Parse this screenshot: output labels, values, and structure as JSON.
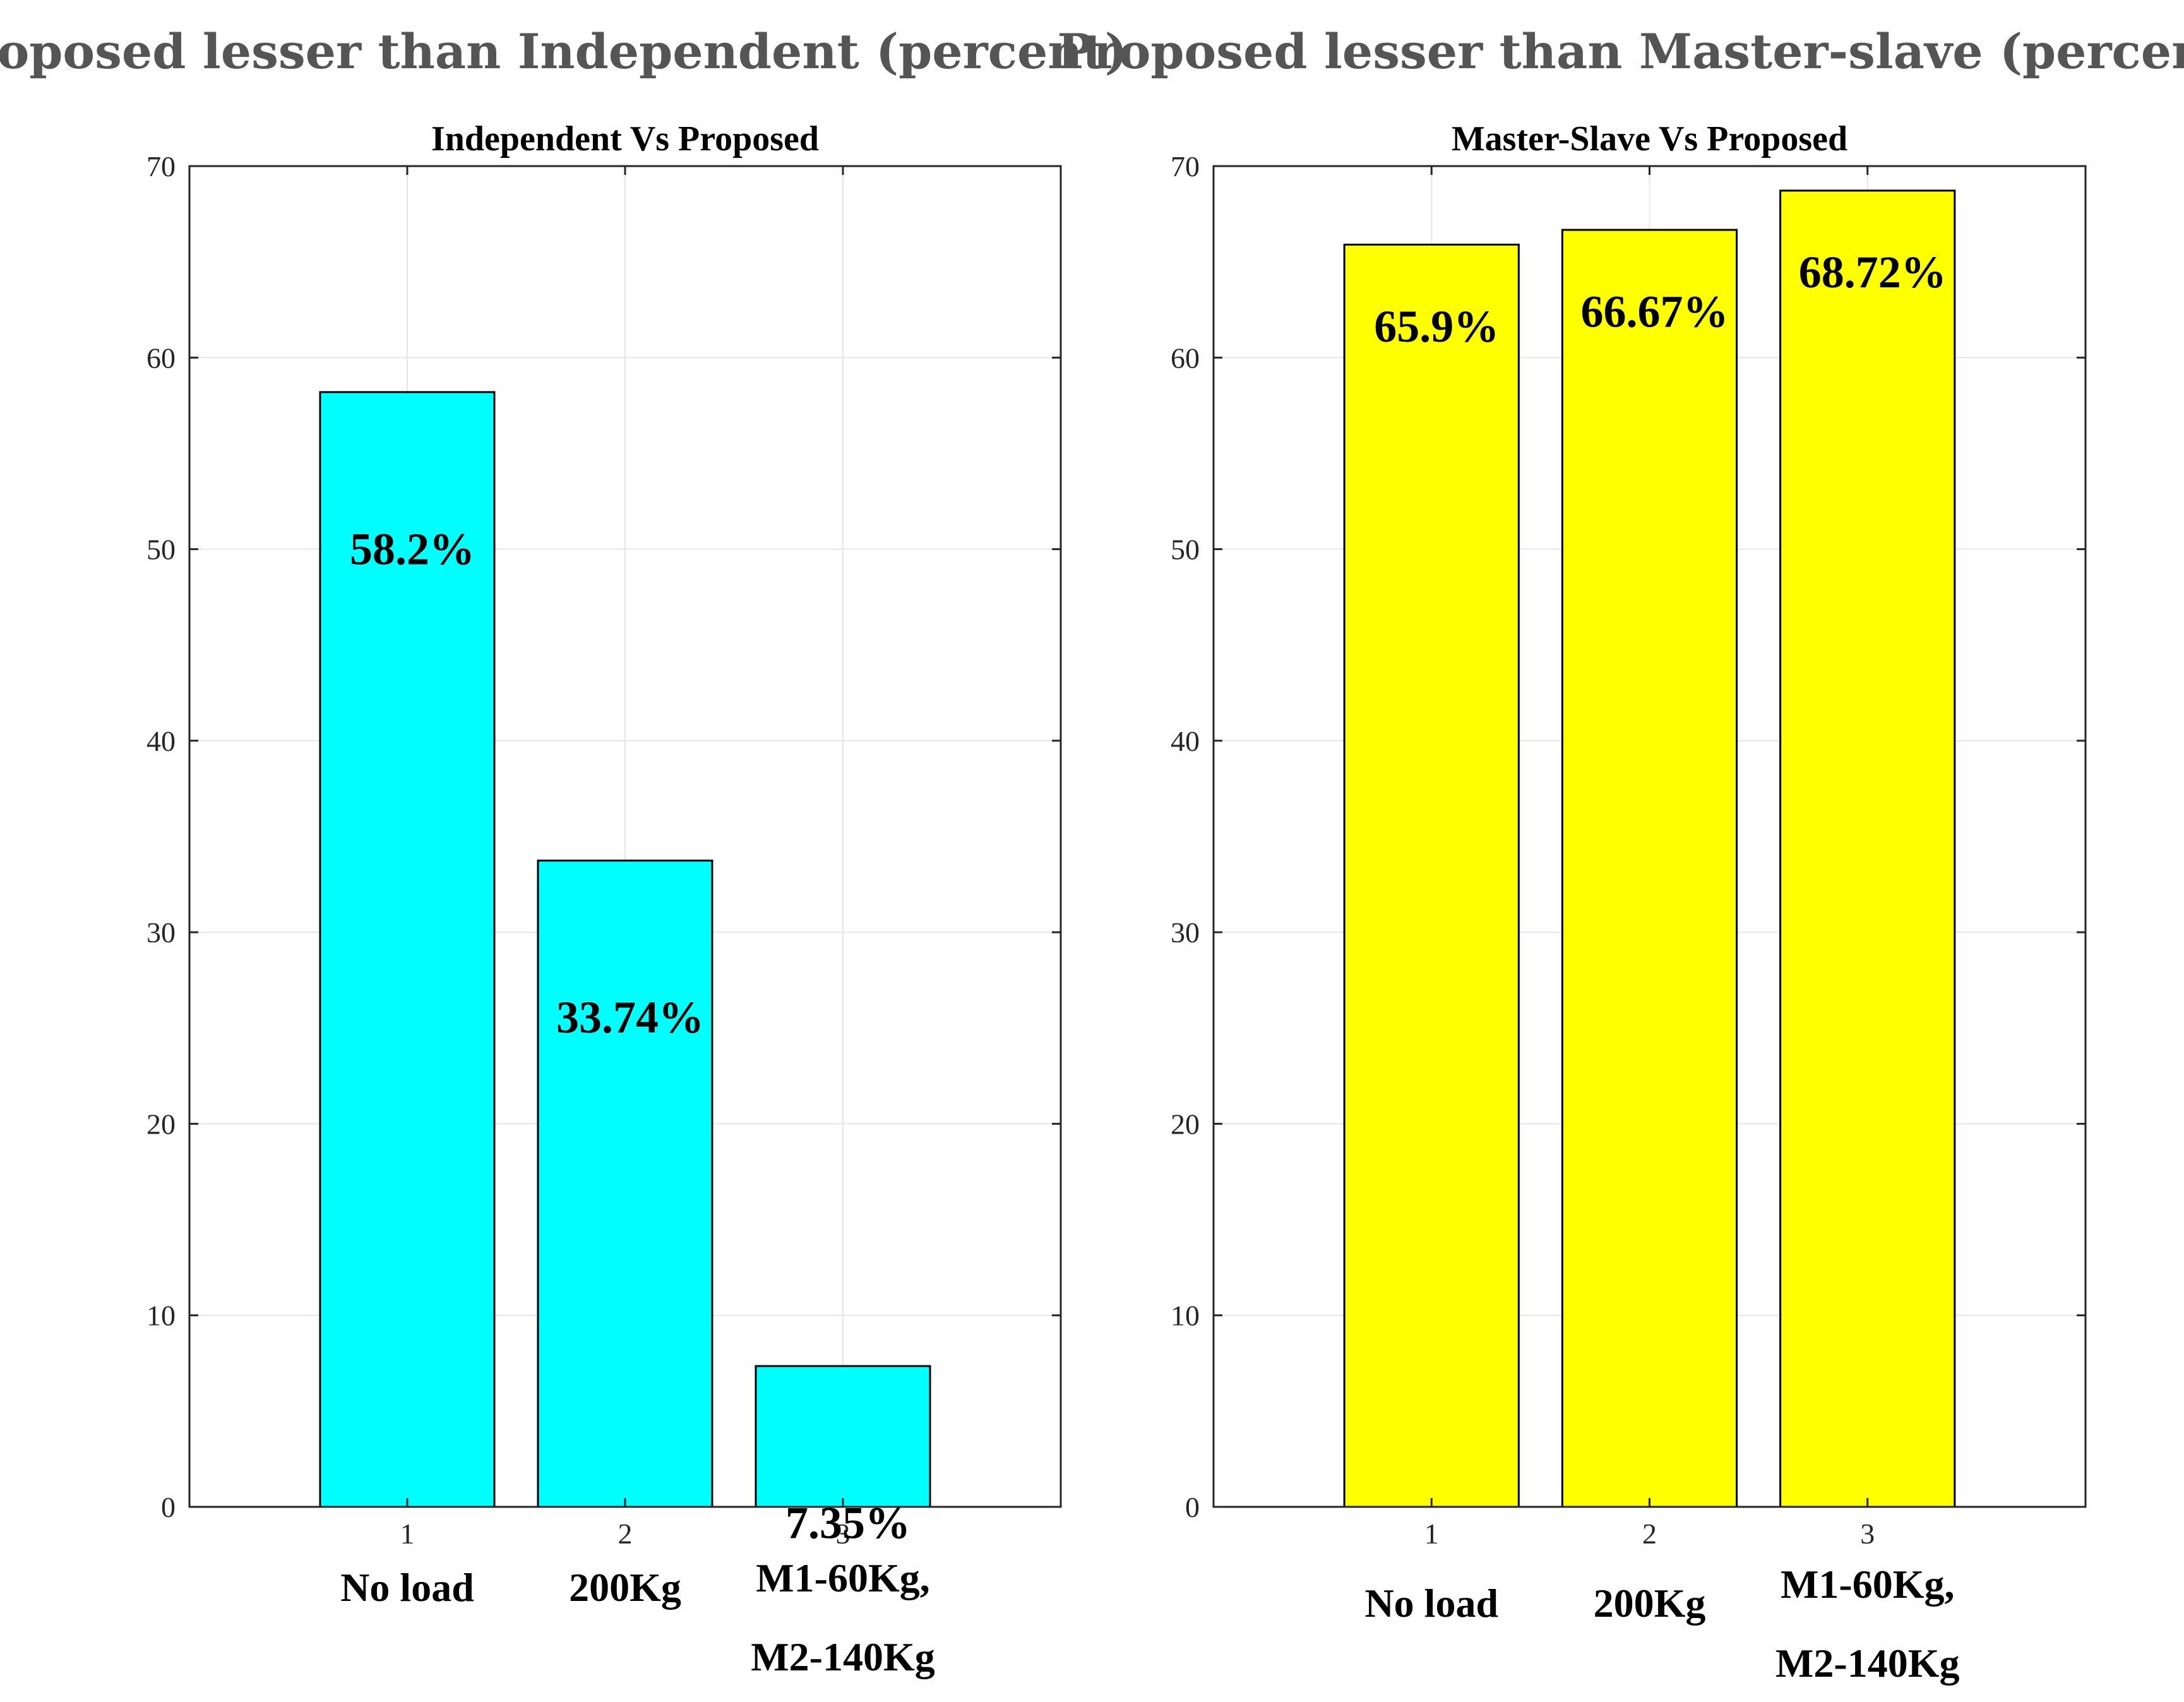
{
  "chart_data": [
    {
      "type": "bar",
      "heading": "Proposed lesser than Independent (percent)",
      "title": "Independent Vs Proposed",
      "x": [
        1,
        2,
        3
      ],
      "categories": [
        "No load",
        "200Kg",
        "M1-60Kg, M2-140Kg"
      ],
      "category_lines": [
        [
          "No load"
        ],
        [
          "200Kg"
        ],
        [
          "M1-60Kg,",
          "M2-140Kg"
        ]
      ],
      "values": [
        58.2,
        33.74,
        7.35
      ],
      "data_labels": [
        "58.2%",
        "33.74%",
        "7.35%"
      ],
      "bar_color": "#00FFFF",
      "xlim": [
        0,
        4
      ],
      "ylim": [
        0,
        70
      ],
      "yticks": [
        0,
        10,
        20,
        30,
        40,
        50,
        60,
        70
      ],
      "grid": true,
      "xlabel": "",
      "ylabel": ""
    },
    {
      "type": "bar",
      "heading": "Proposed lesser than Master-slave (percent)",
      "title": "Master-Slave Vs Proposed",
      "x": [
        1,
        2,
        3
      ],
      "categories": [
        "No load",
        "200Kg",
        "M1-60Kg, M2-140Kg"
      ],
      "category_lines": [
        [
          "No load"
        ],
        [
          "200Kg"
        ],
        [
          "M1-60Kg,",
          "M2-140Kg"
        ]
      ],
      "values": [
        65.9,
        66.67,
        68.72
      ],
      "data_labels": [
        "65.9%",
        "66.67%",
        "68.72%"
      ],
      "bar_color": "#FFFF00",
      "xlim": [
        0,
        4
      ],
      "ylim": [
        0,
        70
      ],
      "yticks": [
        0,
        10,
        20,
        30,
        40,
        50,
        60,
        70
      ],
      "grid": true,
      "xlabel": "",
      "ylabel": ""
    }
  ]
}
